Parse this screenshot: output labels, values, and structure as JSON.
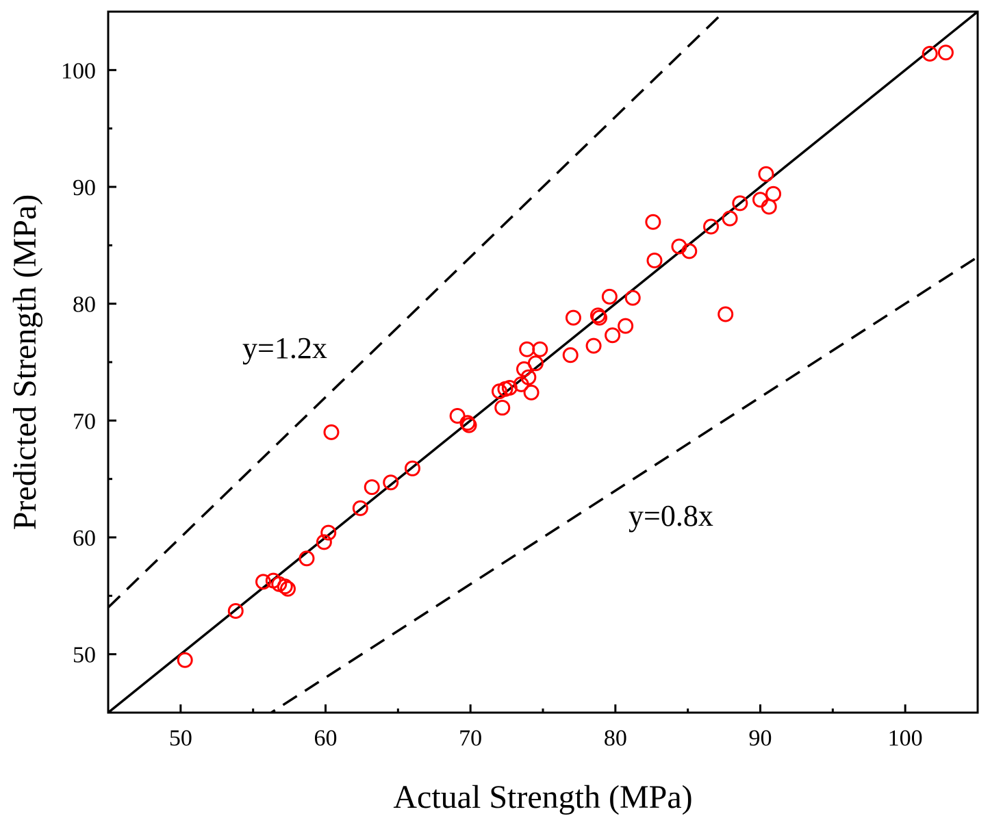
{
  "chart_data": {
    "type": "scatter",
    "title": "",
    "xlabel": "Actual Strength (MPa)",
    "ylabel": "Predicted Strength (MPa)",
    "xlim": [
      45,
      105
    ],
    "ylim": [
      45,
      105
    ],
    "x_ticks": [
      50,
      60,
      70,
      80,
      90,
      100
    ],
    "y_ticks": [
      50,
      60,
      70,
      80,
      90,
      100
    ],
    "x_tick_labels": [
      "50",
      "60",
      "70",
      "80",
      "90",
      "100"
    ],
    "y_tick_labels": [
      "50",
      "60",
      "70",
      "80",
      "90",
      "100"
    ],
    "grid": false,
    "marker": "open-circle",
    "colors": {
      "points": "#ff0000",
      "lines": "#000000",
      "axes": "#000000"
    },
    "reference_lines": [
      {
        "slope": 1.0,
        "style": "solid",
        "label": ""
      },
      {
        "slope": 1.2,
        "style": "dashed",
        "label": "y=1.2x"
      },
      {
        "slope": 0.8,
        "style": "dashed",
        "label": "y=0.8x"
      }
    ],
    "series": [
      {
        "x": [
          50.3,
          53.8,
          55.7,
          56.4,
          56.8,
          57.2,
          57.4,
          58.7,
          59.9,
          60.2,
          60.4,
          62.4,
          63.2,
          64.5,
          66.0,
          69.1,
          69.8,
          69.9,
          72.0,
          72.2,
          72.4,
          72.7,
          73.5,
          73.7,
          73.9,
          74.0,
          74.2,
          74.5,
          74.8,
          76.9,
          77.1,
          78.5,
          78.8,
          78.9,
          79.6,
          79.8,
          80.7,
          81.2,
          82.6,
          82.7,
          84.4,
          85.1,
          86.6,
          87.6,
          87.9,
          88.6,
          90.0,
          90.4,
          90.6,
          90.9,
          101.7,
          102.8
        ],
        "y": [
          49.5,
          53.7,
          56.2,
          56.3,
          56.0,
          55.8,
          55.6,
          58.2,
          59.6,
          60.4,
          69.0,
          62.5,
          64.3,
          64.7,
          65.9,
          70.4,
          69.8,
          69.6,
          72.5,
          71.1,
          72.7,
          72.8,
          73.1,
          74.4,
          76.1,
          73.7,
          72.4,
          74.9,
          76.1,
          75.6,
          78.8,
          76.4,
          79.0,
          78.8,
          80.6,
          77.3,
          78.1,
          80.5,
          87.0,
          83.7,
          84.9,
          84.5,
          86.6,
          79.1,
          87.3,
          88.6,
          88.9,
          91.1,
          88.3,
          89.4,
          101.4,
          101.5
        ]
      }
    ]
  }
}
